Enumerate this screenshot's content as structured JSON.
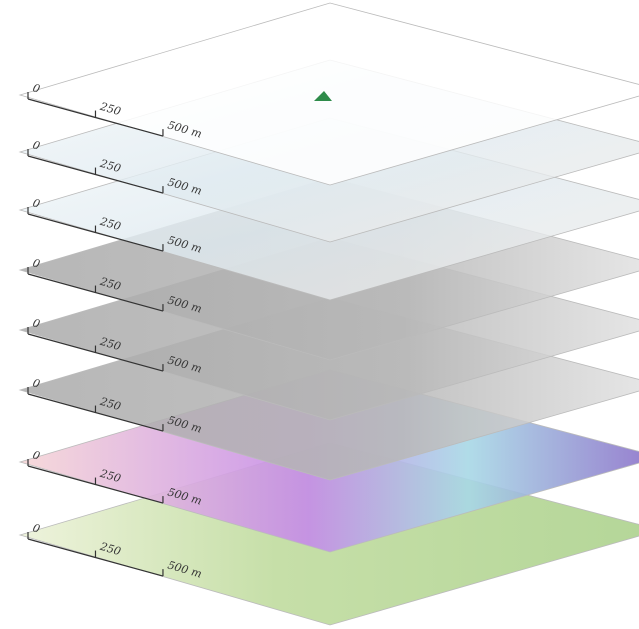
{
  "layers": [
    {
      "scale_labels": [
        "0",
        "250",
        "500 m"
      ]
    },
    {
      "scale_labels": [
        "0",
        "250",
        "500 m"
      ]
    },
    {
      "scale_labels": [
        "0",
        "250",
        "500 m"
      ]
    },
    {
      "scale_labels": [
        "0",
        "250",
        "500 m"
      ]
    },
    {
      "scale_labels": [
        "0",
        "250",
        "500 m"
      ]
    },
    {
      "scale_labels": [
        "0",
        "250",
        "500 m"
      ]
    },
    {
      "scale_labels": [
        "0",
        "250",
        "500 m"
      ]
    },
    {
      "scale_labels": [
        "0",
        "250",
        "500 m"
      ]
    }
  ]
}
